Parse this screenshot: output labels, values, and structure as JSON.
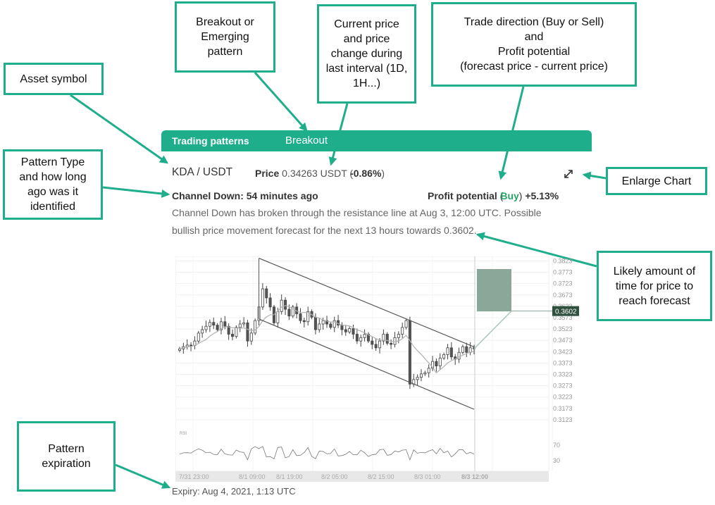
{
  "callouts": {
    "asset_symbol": "Asset symbol",
    "breakout": "Breakout or\nEmerging\npattern",
    "current_price": "Current price\nand price\nchange during\nlast interval (1D,\n1H...)",
    "trade_direction": "Trade direction (Buy or Sell)\nand\nProfit potential\n(forecast price - current price)",
    "pattern_type": "Pattern Type\nand how long\nago was it\nidentified",
    "enlarge_chart": "Enlarge Chart",
    "likely_time": "Likely amount of\ntime for price to\nreach forecast",
    "expiration": "Pattern\nexpiration"
  },
  "widget": {
    "tab_active": "Trading patterns",
    "tab_type": "Breakout",
    "symbol": "KDA / USDT",
    "price_label": "Price",
    "price_value": "0.34263 USDT",
    "price_open": "(",
    "price_change": "-0.86%",
    "price_close": ")",
    "pattern_line": "Channel Down: 54 minutes ago",
    "profit_label": "Profit potential",
    "profit_open": "(",
    "direction": "Buy",
    "profit_close": ")",
    "profit_value": "+5.13%",
    "description": "Channel Down has broken through the resistance line at Aug 3, 12:00 UTC. Possible bullish price movement forecast for the next 13 hours towards 0.3602.",
    "expiry": "Expiry: Aug 4, 2021, 1:13 UTC",
    "enlarge_icon": "expand-arrows-icon"
  },
  "colors": {
    "accent": "#1fae8c",
    "direction": "#27a567",
    "forecast_box": "#8aa899"
  },
  "chart_data": {
    "type": "candlestick",
    "y_ticks": [
      "0.3823",
      "0.3773",
      "0.3723",
      "0.3673",
      "0.3623",
      "0.3573",
      "0.3523",
      "0.3473",
      "0.3423",
      "0.3373",
      "0.3323",
      "0.3273",
      "0.3223",
      "0.3173",
      "0.3123"
    ],
    "ylim": [
      0.3098,
      0.3843
    ],
    "x_ticks": [
      "7/31 23:00",
      "8/1 09:00",
      "8/1 19:00",
      "8/2 05:00",
      "8/2 15:00",
      "8/3 01:00",
      "8/3 12:00"
    ],
    "forecast_label": "0.3602",
    "forecast_price": 0.3602,
    "rsi_label": "RSI",
    "rsi_ticks": [
      "70",
      "30"
    ],
    "closes": [
      0.3435,
      0.3445,
      0.3452,
      0.345,
      0.347,
      0.3505,
      0.352,
      0.3535,
      0.3552,
      0.354,
      0.352,
      0.3555,
      0.3535,
      0.35,
      0.349,
      0.353,
      0.3545,
      0.355,
      0.347,
      0.3505,
      0.356,
      0.362,
      0.37,
      0.366,
      0.362,
      0.355,
      0.36,
      0.365,
      0.361,
      0.358,
      0.362,
      0.359,
      0.356,
      0.3555,
      0.36,
      0.3575,
      0.352,
      0.3545,
      0.356,
      0.3545,
      0.353,
      0.356,
      0.354,
      0.352,
      0.351,
      0.3525,
      0.35,
      0.347,
      0.3485,
      0.35,
      0.347,
      0.3455,
      0.344,
      0.347,
      0.35,
      0.346,
      0.3455,
      0.3485,
      0.35,
      0.353,
      0.356,
      0.328,
      0.33,
      0.331,
      0.3325,
      0.333,
      0.335,
      0.338,
      0.336,
      0.3395,
      0.341,
      0.344,
      0.34,
      0.339,
      0.342,
      0.3445,
      0.342,
      0.344,
      0.3436
    ]
  }
}
